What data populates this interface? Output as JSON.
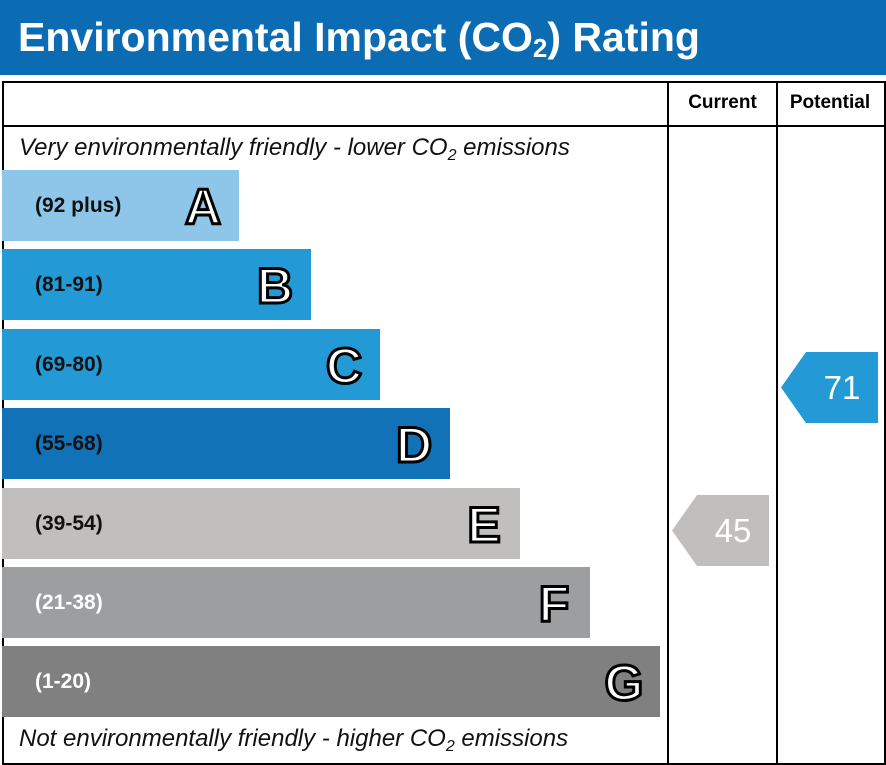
{
  "header": {
    "title": "Environmental Impact (CO",
    "title_sub": "2",
    "title_end": ") Rating"
  },
  "columns": {
    "current": "Current",
    "potential": "Potential"
  },
  "notes": {
    "top": "Very environmentally friendly - lower CO",
    "top_sub": "2",
    "top_end": " emissions",
    "bottom": "Not environmentally friendly - higher CO",
    "bottom_sub": "2",
    "bottom_end": " emissions"
  },
  "chart_data": {
    "type": "bar",
    "bands": [
      {
        "letter": "A",
        "range": "(92 plus)",
        "color": "#8dc6e8",
        "text_color": "#111111"
      },
      {
        "letter": "B",
        "range": "(81-91)",
        "color": "#239ad6",
        "text_color": "#111111"
      },
      {
        "letter": "C",
        "range": "(69-80)",
        "color": "#239ad6",
        "text_color": "#111111"
      },
      {
        "letter": "D",
        "range": "(55-68)",
        "color": "#1172b8",
        "text_color": "#111111"
      },
      {
        "letter": "E",
        "range": "(39-54)",
        "color": "#c0bfbd",
        "text_color": "#111111"
      },
      {
        "letter": "F",
        "range": "(21-38)",
        "color": "#9d9ea0",
        "text_color": "#ffffff"
      },
      {
        "letter": "G",
        "range": "(1-20)",
        "color": "#808080",
        "text_color": "#ffffff"
      }
    ],
    "current": {
      "value": "45",
      "band": "E",
      "color": "#c0bfbd"
    },
    "potential": {
      "value": "71",
      "band": "C",
      "color": "#239ad6"
    }
  }
}
